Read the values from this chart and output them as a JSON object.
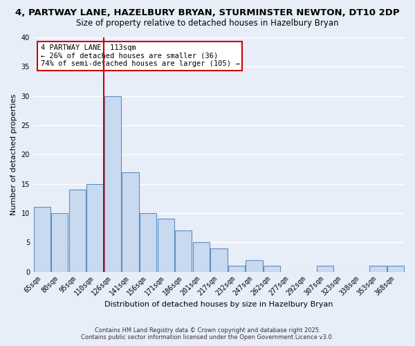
{
  "title": "4, PARTWAY LANE, HAZELBURY BRYAN, STURMINSTER NEWTON, DT10 2DP",
  "subtitle": "Size of property relative to detached houses in Hazelbury Bryan",
  "xlabel": "Distribution of detached houses by size in Hazelbury Bryan",
  "ylabel": "Number of detached properties",
  "bar_labels": [
    "65sqm",
    "80sqm",
    "95sqm",
    "110sqm",
    "126sqm",
    "141sqm",
    "156sqm",
    "171sqm",
    "186sqm",
    "201sqm",
    "217sqm",
    "232sqm",
    "247sqm",
    "262sqm",
    "277sqm",
    "292sqm",
    "307sqm",
    "323sqm",
    "338sqm",
    "353sqm",
    "368sqm"
  ],
  "bar_values": [
    11,
    10,
    14,
    15,
    30,
    17,
    10,
    9,
    7,
    5,
    4,
    1,
    2,
    1,
    0,
    0,
    1,
    0,
    0,
    1,
    1
  ],
  "bar_color": "#c9d9f0",
  "bar_edge_color": "#5a8fc3",
  "background_color": "#e8eef8",
  "vline_x": 3.5,
  "vline_color": "#cc0000",
  "annotation_text": "4 PARTWAY LANE: 113sqm\n← 26% of detached houses are smaller (36)\n74% of semi-detached houses are larger (105) →",
  "annotation_box_color": "white",
  "annotation_box_edge": "#cc0000",
  "ylim": [
    0,
    40
  ],
  "footer1": "Contains HM Land Registry data © Crown copyright and database right 2025.",
  "footer2": "Contains public sector information licensed under the Open Government Licence v3.0.",
  "title_fontsize": 9.5,
  "subtitle_fontsize": 8.5,
  "axis_label_fontsize": 8,
  "tick_fontsize": 7,
  "annotation_fontsize": 7.5
}
